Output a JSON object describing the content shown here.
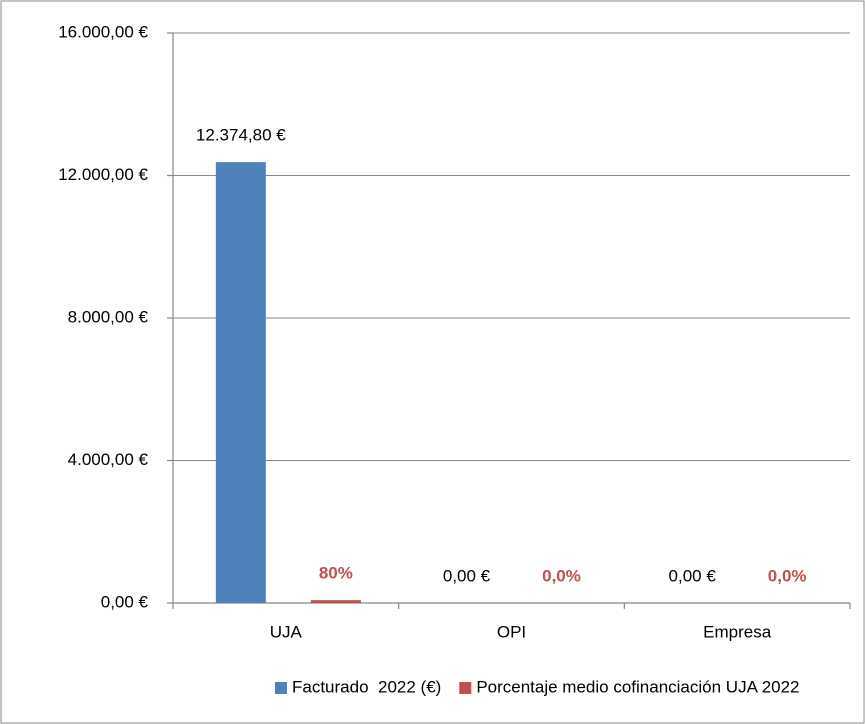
{
  "chart_data": {
    "type": "bar",
    "categories": [
      "UJA",
      "OPI",
      "Empresa"
    ],
    "series": [
      {
        "name": "Facturado  2022 (€)",
        "color": "#4f81bd",
        "values": [
          12374.8,
          0,
          0
        ],
        "value_labels": [
          "12.374,80 €",
          "0,00 €",
          "0,00 €"
        ]
      },
      {
        "name": "Porcentaje medio cofinanciación UJA 2022",
        "color": "#c0504d",
        "values": [
          80,
          0,
          0
        ],
        "value_labels": [
          "80%",
          "0,0%",
          "0,0%"
        ]
      }
    ],
    "ylim": [
      0,
      16000
    ],
    "yticks": [
      {
        "value": 0,
        "label": "0,00 €"
      },
      {
        "value": 4000,
        "label": "4.000,00 €"
      },
      {
        "value": 8000,
        "label": "8.000,00 €"
      },
      {
        "value": 12000,
        "label": "12.000,00 €"
      },
      {
        "value": 16000,
        "label": "16.000,00 €"
      }
    ],
    "grid": true,
    "legend": "bottom"
  }
}
